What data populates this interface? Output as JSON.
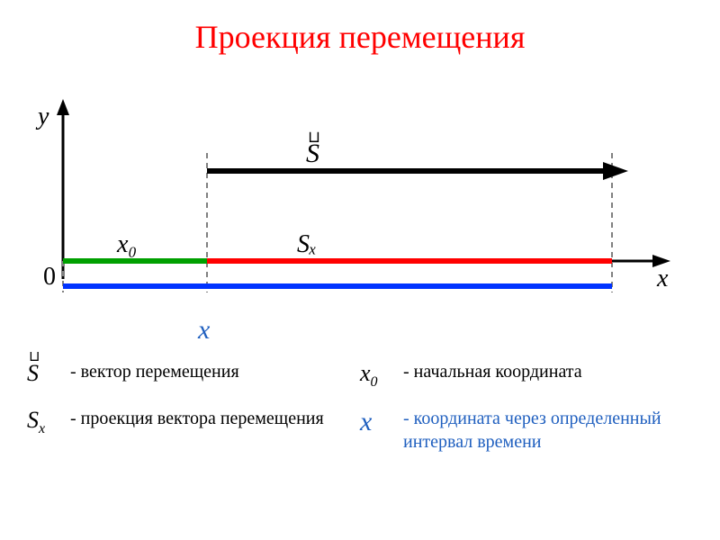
{
  "title": {
    "text": "Проекция перемещения",
    "color": "#ff0000",
    "fontsize": 36
  },
  "diagram": {
    "axis_color": "#000000",
    "axis_width": 3,
    "dash_color": "#808080",
    "origin_label": "0",
    "y_label": "y",
    "x_label": "x",
    "label_fontsize": 28,
    "s_vector": {
      "label": "S",
      "combining": "⊔",
      "color": "#000000",
      "arrow_width": 6
    },
    "sx_label": "Sₓ",
    "x0_label": "x₀",
    "x_below": {
      "label": "x",
      "color": "#1f5fbf",
      "fontsize": 30,
      "italic": true
    },
    "green": {
      "color": "#00a000",
      "width": 6
    },
    "red": {
      "color": "#ff0000",
      "width": 6
    },
    "blue": {
      "color": "#0033ff",
      "width": 6
    },
    "x0_pos": 0.28,
    "x_end_pos": 0.92
  },
  "legend": {
    "items": [
      {
        "sym_html": "<span class='combine'><span class='over'>⊔</span>S</span>",
        "desc": "- вектор перемещения",
        "desc_color": "#000000"
      },
      {
        "sym_html": "x<sub>0</sub>",
        "desc": "- начальная координата",
        "desc_color": "#000000"
      },
      {
        "sym_html": "S<sub>x</sub>",
        "desc": "- проекция вектора перемещения",
        "desc_color": "#000000"
      },
      {
        "sym_html": "<span style='color:#1f5fbf;font-size:30px'>x</span>",
        "desc": "-  координата через определенный интервал времени",
        "desc_color": "#1f5fbf"
      }
    ]
  }
}
